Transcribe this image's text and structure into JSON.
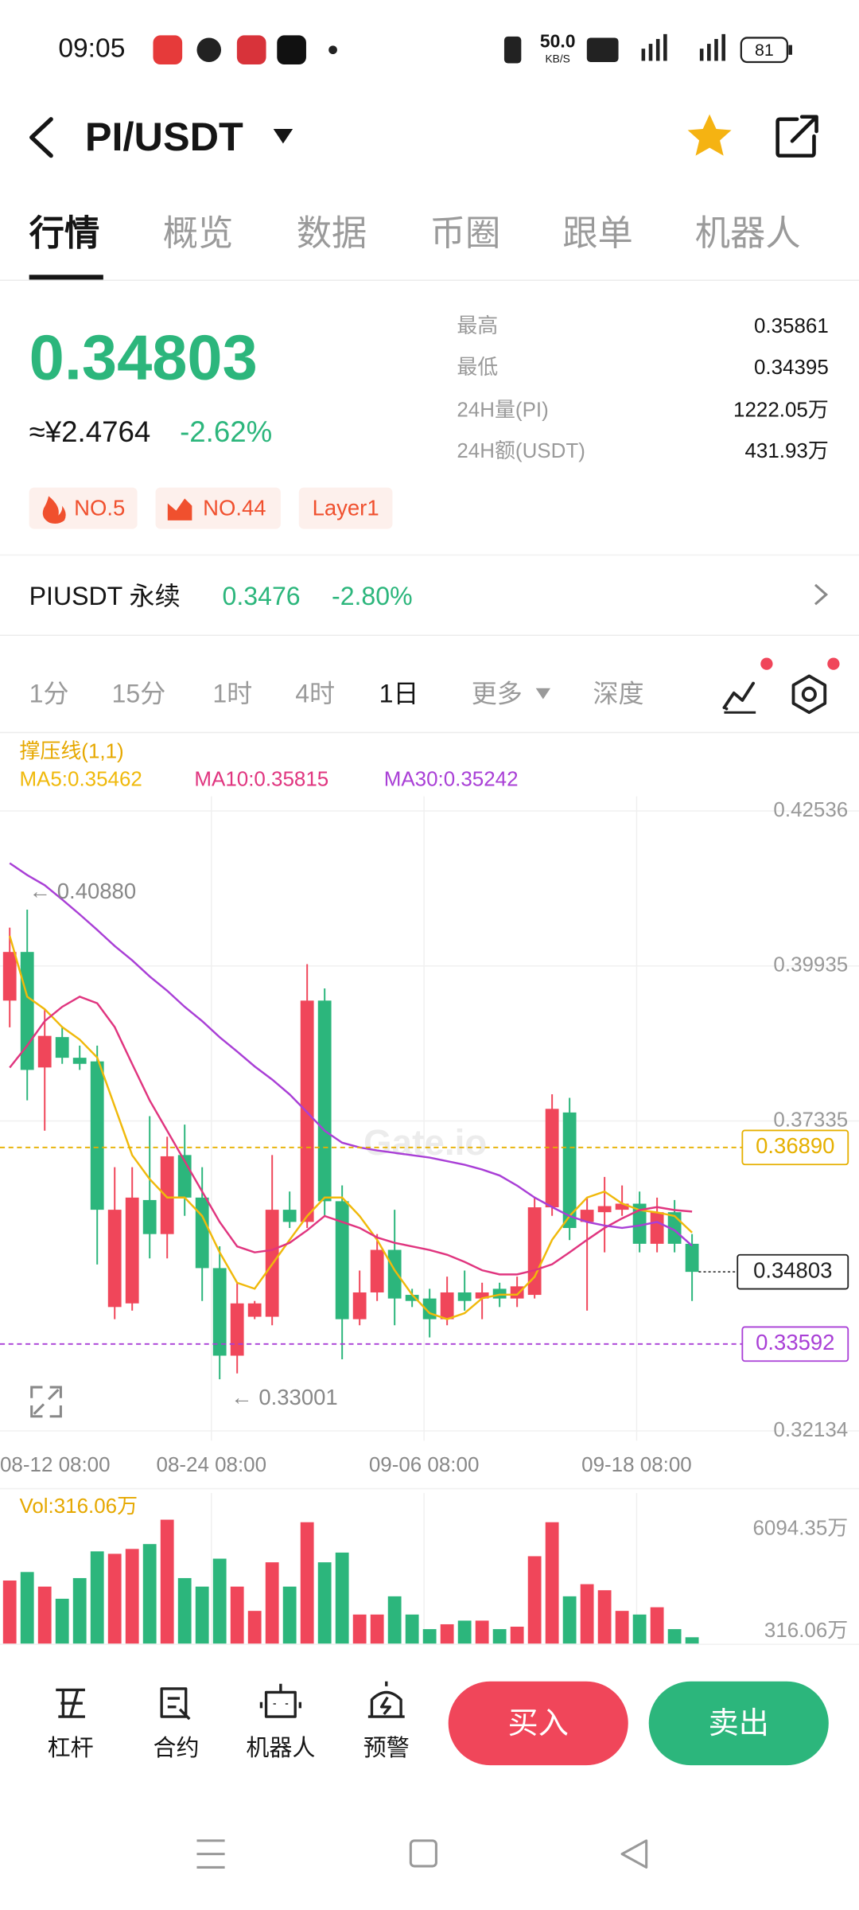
{
  "status_bar": {
    "time": "09:05",
    "speed": "50.0",
    "speed_unit": "KB/S",
    "battery": "81"
  },
  "header": {
    "pair": "PI/USDT"
  },
  "tabs": [
    "行情",
    "概览",
    "数据",
    "币圈",
    "跟单",
    "机器人"
  ],
  "price": {
    "last": "0.34803",
    "cny": "≈¥2.4764",
    "change": "-2.62%"
  },
  "stats": [
    {
      "label": "最高",
      "value": "0.35861"
    },
    {
      "label": "最低",
      "value": "0.34395"
    },
    {
      "label": "24H量(PI)",
      "value": "1222.05万"
    },
    {
      "label": "24H额(USDT)",
      "value": "431.93万"
    }
  ],
  "tags": [
    "NO.5",
    "NO.44",
    "Layer1"
  ],
  "perpetual": {
    "name": "PIUSDT 永续",
    "price": "0.3476",
    "change": "-2.80%"
  },
  "intervals": [
    "1分",
    "15分",
    "1时",
    "4时",
    "1日",
    "更多",
    "深度"
  ],
  "chart_data": {
    "type": "candlestick",
    "indicator": "撑压线(1,1)",
    "watermark": "Gate.io",
    "up_color": "#f0465a",
    "down_color": "#2cb67c",
    "ylim": [
      0.32134,
      0.42536
    ],
    "yticks": [
      0.42536,
      0.39935,
      0.37335,
      0.32134
    ],
    "x_labels": [
      "08-12 08:00",
      "08-24 08:00",
      "09-06 08:00",
      "09-18 08:00"
    ],
    "open": [
      0.39354,
      0.4017,
      0.38232,
      0.38742,
      0.38395,
      0.38334,
      0.34213,
      0.34274,
      0.36008,
      0.35437,
      0.36763,
      0.36049,
      0.34866,
      0.33397,
      0.3405,
      0.3405,
      0.35845,
      0.35641,
      0.39354,
      0.35988,
      0.34009,
      0.34458,
      0.35172,
      0.34417,
      0.34356,
      0.34009,
      0.34458,
      0.34356,
      0.34519,
      0.34356,
      0.34417,
      0.35886,
      0.37477,
      0.35641,
      0.35804,
      0.35845,
      0.35947,
      0.35274,
      0.35804,
      0.35274
    ],
    "high": [
      0.40578,
      0.4088,
      0.39211,
      0.38905,
      0.38599,
      0.38599,
      0.36559,
      0.36559,
      0.37416,
      0.37069,
      0.37273,
      0.36559,
      0.35233,
      0.34621,
      0.34315,
      0.36763,
      0.36151,
      0.39966,
      0.39558,
      0.36253,
      0.34825,
      0.35437,
      0.35845,
      0.34519,
      0.34519,
      0.34723,
      0.34825,
      0.34621,
      0.34621,
      0.34723,
      0.36049,
      0.37783,
      0.37722,
      0.36049,
      0.36396,
      0.36253,
      0.36151,
      0.36049,
      0.36008,
      0.35437
    ],
    "low": [
      0.38905,
      0.37681,
      0.37171,
      0.38293,
      0.38191,
      0.34927,
      0.34009,
      0.34152,
      0.35029,
      0.35029,
      0.35743,
      0.34315,
      0.33001,
      0.331,
      0.34009,
      0.33907,
      0.35539,
      0.35539,
      0.35743,
      0.33336,
      0.33907,
      0.34315,
      0.33907,
      0.34213,
      0.33703,
      0.33907,
      0.34152,
      0.34009,
      0.34213,
      0.34213,
      0.34356,
      0.35743,
      0.35335,
      0.34152,
      0.35131,
      0.35743,
      0.35131,
      0.35131,
      0.35131,
      0.34315
    ],
    "close": [
      0.4017,
      0.38191,
      0.38762,
      0.38395,
      0.38293,
      0.35845,
      0.35845,
      0.36049,
      0.35437,
      0.36742,
      0.36049,
      0.34866,
      0.33397,
      0.34274,
      0.34274,
      0.35845,
      0.35641,
      0.39354,
      0.35988,
      0.34009,
      0.34458,
      0.35172,
      0.34356,
      0.34315,
      0.34009,
      0.34458,
      0.34315,
      0.34458,
      0.34356,
      0.3456,
      0.35886,
      0.37538,
      0.35539,
      0.35845,
      0.35906,
      0.35947,
      0.35274,
      0.35804,
      0.35274,
      0.34803
    ],
    "ma": [
      {
        "name": "MA5:0.35462",
        "color": "#f0b90b",
        "values": [
          0.4044,
          0.3942,
          0.3921,
          0.3891,
          0.387,
          0.384,
          0.3758,
          0.3676,
          0.3636,
          0.3605,
          0.3605,
          0.3574,
          0.3513,
          0.3462,
          0.3452,
          0.3493,
          0.3534,
          0.3574,
          0.3605,
          0.3605,
          0.3574,
          0.3534,
          0.3483,
          0.3442,
          0.3411,
          0.3401,
          0.3411,
          0.3436,
          0.3442,
          0.3442,
          0.3472,
          0.3534,
          0.3574,
          0.3605,
          0.3615,
          0.3595,
          0.3584,
          0.358,
          0.3574,
          0.35462
        ]
      },
      {
        "name": "MA10:0.35815",
        "color": "#e0357f",
        "values": [
          0.3823,
          0.386,
          0.3901,
          0.3925,
          0.3942,
          0.3931,
          0.3891,
          0.3829,
          0.3768,
          0.3717,
          0.3666,
          0.3615,
          0.3564,
          0.3523,
          0.3513,
          0.3517,
          0.3529,
          0.355,
          0.3574,
          0.3564,
          0.3554,
          0.3538,
          0.3529,
          0.3523,
          0.3517,
          0.3509,
          0.3497,
          0.3483,
          0.3476,
          0.3476,
          0.3483,
          0.3493,
          0.3513,
          0.3534,
          0.3554,
          0.357,
          0.3584,
          0.3589,
          0.3584,
          0.35815
        ]
      },
      {
        "name": "MA30:0.35242",
        "color": "#a93fd6",
        "values": [
          0.4166,
          0.4146,
          0.4129,
          0.4105,
          0.408,
          0.4054,
          0.4027,
          0.4003,
          0.3976,
          0.3952,
          0.3925,
          0.3901,
          0.3874,
          0.385,
          0.3825,
          0.3803,
          0.3778,
          0.3748,
          0.3717,
          0.3697,
          0.3689,
          0.3684,
          0.368,
          0.3676,
          0.3672,
          0.3666,
          0.366,
          0.3652,
          0.3642,
          0.3625,
          0.3605,
          0.3589,
          0.3574,
          0.3564,
          0.3558,
          0.3554,
          0.3558,
          0.3564,
          0.355,
          0.35242
        ]
      }
    ],
    "levels": [
      {
        "value": 0.3689,
        "label": "0.36890",
        "color": "#e6b000"
      },
      {
        "value": 0.33592,
        "label": "0.33592",
        "color": "#a93fd6"
      }
    ],
    "last_price": 0.34803,
    "extremes": [
      {
        "value": 0.4088,
        "label": "← 0.40880"
      },
      {
        "value": 0.33001,
        "label": "← 0.33001"
      }
    ],
    "volume_label": "Vol:316.06万",
    "volume": [
      3105,
      3523,
      2806,
      2209,
      3224,
      4538,
      4418,
      4657,
      4896,
      6094.35,
      3224,
      2806,
      4179,
      2806,
      1612,
      4000,
      2806,
      5970,
      4000,
      4478,
      1433,
      1433,
      2328,
      1433,
      716,
      955,
      1134,
      1134,
      716,
      836,
      4299,
      5970,
      2328,
      2925,
      2627,
      1612,
      1433,
      1791,
      716,
      316.06
    ],
    "volume_ylim": [
      0,
      6094.35
    ],
    "volume_ticks": [
      {
        "value": 6094.35,
        "label": "6094.35万"
      },
      {
        "value": 316.06,
        "label": "316.06万"
      }
    ]
  },
  "actions": [
    "杠杆",
    "合约",
    "机器人",
    "预警"
  ],
  "buttons": {
    "buy": "买入",
    "sell": "卖出"
  }
}
